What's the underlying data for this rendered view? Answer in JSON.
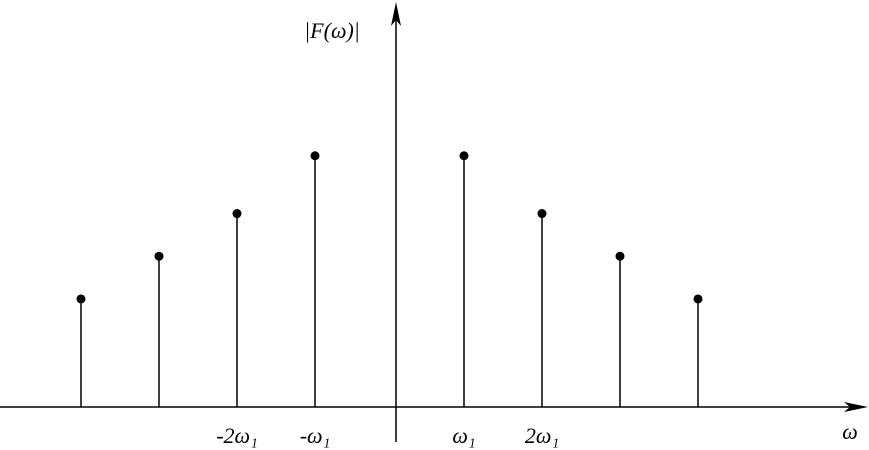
{
  "chart_data": {
    "type": "stem",
    "x_label": "ω",
    "y_label": "|F(ω)|",
    "categories": [
      null,
      null,
      "-2ω₁",
      "-ω₁",
      "ω₁",
      "2ω₁",
      null,
      null
    ],
    "values": [
      0.43,
      0.6,
      0.77,
      1.0,
      1.0,
      0.77,
      0.6,
      0.43
    ],
    "color": "#000000",
    "ylim": [
      0,
      1.6
    ]
  }
}
